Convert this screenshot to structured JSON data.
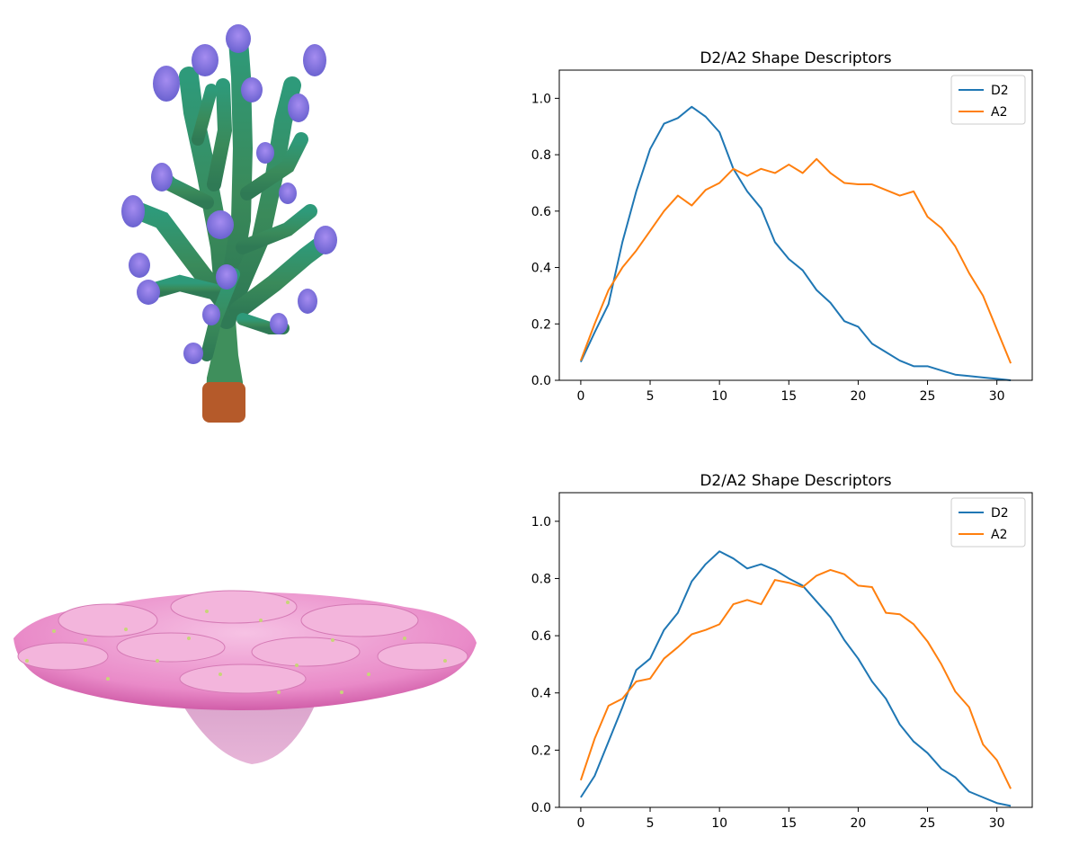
{
  "images": {
    "top_left": "branching-coral-3d-model",
    "bottom_left": "plate-coral-3d-model"
  },
  "colors": {
    "D2": "#1f77b4",
    "A2": "#ff7f0e"
  },
  "chart_data": [
    {
      "type": "line",
      "title": "D2/A2 Shape Descriptors",
      "xlabel": "",
      "ylabel": "",
      "xlim": [
        -1.55,
        32.55
      ],
      "ylim": [
        0.0,
        1.1
      ],
      "xticks": [
        "0",
        "5",
        "10",
        "15",
        "20",
        "25",
        "30"
      ],
      "yticks": [
        "0.0",
        "0.2",
        "0.4",
        "0.6",
        "0.8",
        "1.0"
      ],
      "legend": "top-right",
      "grid": false,
      "x": [
        0,
        1,
        2,
        3,
        4,
        5,
        6,
        7,
        8,
        9,
        10,
        11,
        12,
        13,
        14,
        15,
        16,
        17,
        18,
        19,
        20,
        21,
        22,
        23,
        24,
        25,
        26,
        27,
        28,
        29,
        30,
        31
      ],
      "series": [
        {
          "name": "D2",
          "values": [
            0.065,
            0.17,
            0.27,
            0.49,
            0.67,
            0.82,
            0.91,
            0.93,
            0.97,
            0.935,
            0.88,
            0.75,
            0.67,
            0.61,
            0.49,
            0.43,
            0.39,
            0.32,
            0.275,
            0.21,
            0.19,
            0.13,
            0.1,
            0.07,
            0.05,
            0.05,
            0.035,
            0.02,
            0.015,
            0.01,
            0.005,
            0.0
          ]
        },
        {
          "name": "A2",
          "values": [
            0.07,
            0.2,
            0.32,
            0.4,
            0.46,
            0.53,
            0.6,
            0.655,
            0.62,
            0.675,
            0.7,
            0.75,
            0.725,
            0.75,
            0.735,
            0.765,
            0.735,
            0.785,
            0.735,
            0.7,
            0.695,
            0.695,
            0.675,
            0.655,
            0.67,
            0.58,
            0.54,
            0.475,
            0.38,
            0.3,
            0.18,
            0.06
          ]
        }
      ]
    },
    {
      "type": "line",
      "title": "D2/A2 Shape Descriptors",
      "xlabel": "",
      "ylabel": "",
      "xlim": [
        -1.55,
        32.55
      ],
      "ylim": [
        0.0,
        1.1
      ],
      "xticks": [
        "0",
        "5",
        "10",
        "15",
        "20",
        "25",
        "30"
      ],
      "yticks": [
        "0.0",
        "0.2",
        "0.4",
        "0.6",
        "0.8",
        "1.0"
      ],
      "legend": "top-right",
      "grid": false,
      "x": [
        0,
        1,
        2,
        3,
        4,
        5,
        6,
        7,
        8,
        9,
        10,
        11,
        12,
        13,
        14,
        15,
        16,
        17,
        18,
        19,
        20,
        21,
        22,
        23,
        24,
        25,
        26,
        27,
        28,
        29,
        30,
        31
      ],
      "series": [
        {
          "name": "D2",
          "values": [
            0.035,
            0.11,
            0.23,
            0.35,
            0.48,
            0.52,
            0.62,
            0.68,
            0.79,
            0.85,
            0.895,
            0.87,
            0.835,
            0.85,
            0.83,
            0.8,
            0.775,
            0.72,
            0.665,
            0.585,
            0.52,
            0.44,
            0.38,
            0.29,
            0.23,
            0.19,
            0.135,
            0.105,
            0.055,
            0.035,
            0.015,
            0.005
          ]
        },
        {
          "name": "A2",
          "values": [
            0.095,
            0.24,
            0.355,
            0.38,
            0.44,
            0.45,
            0.52,
            0.56,
            0.605,
            0.62,
            0.64,
            0.71,
            0.725,
            0.71,
            0.795,
            0.785,
            0.77,
            0.81,
            0.83,
            0.815,
            0.775,
            0.77,
            0.68,
            0.675,
            0.64,
            0.58,
            0.5,
            0.405,
            0.35,
            0.22,
            0.165,
            0.065
          ]
        }
      ]
    }
  ]
}
